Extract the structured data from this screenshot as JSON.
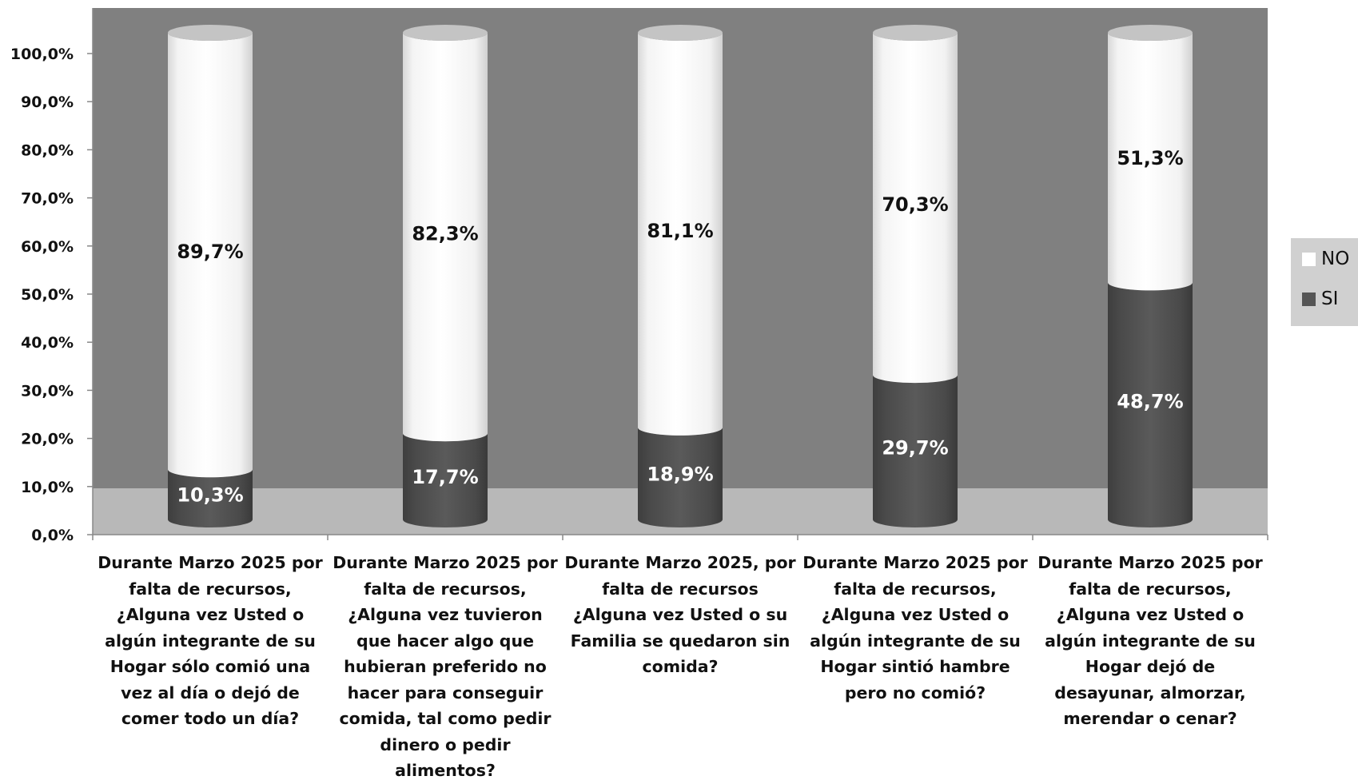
{
  "chart_data": {
    "type": "bar",
    "stacked": true,
    "style": "3d-cylinder",
    "categories": [
      "Durante Marzo 2025 por falta de recursos, ¿Alguna vez Usted o algún integrante de su Hogar sólo comió una vez al día o dejó de comer todo un día?",
      "Durante Marzo 2025 por falta de recursos, ¿Alguna vez tuvieron que hacer algo que hubieran preferido no hacer para conseguir comida, tal como pedir dinero o pedir alimentos?",
      "Durante Marzo 2025, por falta de recursos ¿Alguna vez Usted o su Familia se quedaron sin comida?",
      "Durante Marzo 2025 por falta de recursos, ¿Alguna vez Usted o algún integrante de su Hogar sintió hambre pero no comió?",
      "Durante Marzo 2025 por falta de recursos, ¿Alguna vez Usted o algún integrante de su Hogar dejó de desayunar, almorzar, merendar o cenar?"
    ],
    "series": [
      {
        "name": "SI",
        "color": "#555555",
        "values": [
          10.3,
          17.7,
          18.9,
          29.7,
          48.7
        ],
        "labels": [
          "10,3%",
          "17,7%",
          "18,9%",
          "29,7%",
          "48,7%"
        ]
      },
      {
        "name": "NO",
        "color": "#ffffff",
        "values": [
          89.7,
          82.3,
          81.1,
          70.3,
          51.3
        ],
        "labels": [
          "89,7%",
          "82,3%",
          "81,1%",
          "70,3%",
          "51,3%"
        ]
      }
    ],
    "y_ticks": [
      "0,0%",
      "10,0%",
      "20,0%",
      "30,0%",
      "40,0%",
      "50,0%",
      "60,0%",
      "70,0%",
      "80,0%",
      "90,0%",
      "100,0%"
    ],
    "ylim": [
      0,
      100
    ],
    "legend_position": "right",
    "colors": {
      "wall": "#808080",
      "floor": "#b8b8b8",
      "si": "#555555",
      "no": "#ffffff",
      "legend_bg": "#d0d0d0"
    }
  },
  "legend": {
    "no_label": "NO",
    "si_label": "SI"
  }
}
